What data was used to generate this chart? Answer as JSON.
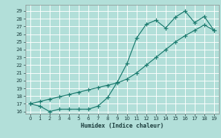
{
  "title": "",
  "xlabel": "Humidex (Indice chaleur)",
  "ylabel": "",
  "background_color": "#b2dfd9",
  "grid_color": "#ffffff",
  "line_color": "#1a7a6e",
  "xlim": [
    -0.5,
    19.5
  ],
  "ylim": [
    15.7,
    29.8
  ],
  "xticks": [
    0,
    1,
    2,
    3,
    4,
    5,
    6,
    7,
    8,
    9,
    10,
    11,
    12,
    13,
    14,
    15,
    16,
    17,
    18,
    19
  ],
  "yticks": [
    16,
    17,
    18,
    19,
    20,
    21,
    22,
    23,
    24,
    25,
    26,
    27,
    28,
    29
  ],
  "series1_x": [
    0,
    1,
    2,
    3,
    4,
    5,
    6,
    7,
    8,
    9,
    10,
    11,
    12,
    13,
    14,
    15,
    16,
    17,
    18,
    19
  ],
  "series1_y": [
    17.0,
    16.7,
    16.0,
    16.3,
    16.3,
    16.3,
    16.3,
    16.7,
    17.8,
    19.8,
    22.2,
    25.5,
    27.3,
    27.8,
    26.8,
    28.2,
    29.0,
    27.5,
    28.3,
    26.5
  ],
  "series2_x": [
    0,
    1,
    2,
    3,
    4,
    5,
    6,
    7,
    8,
    9,
    10,
    11,
    12,
    13,
    14,
    15,
    16,
    17,
    18,
    19
  ],
  "series2_y": [
    17.0,
    17.3,
    17.6,
    17.9,
    18.2,
    18.5,
    18.8,
    19.1,
    19.4,
    19.7,
    20.2,
    21.0,
    22.0,
    23.0,
    24.0,
    25.0,
    25.8,
    26.5,
    27.2,
    26.5
  ],
  "marker": "+",
  "markersize": 4,
  "linewidth": 0.9,
  "tick_fontsize": 5,
  "xlabel_fontsize": 6
}
